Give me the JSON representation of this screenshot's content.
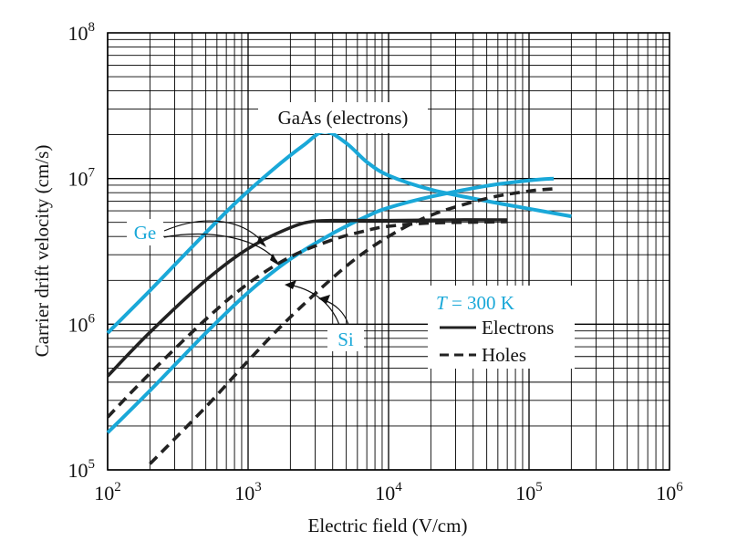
{
  "chart_data": {
    "type": "line",
    "xlabel": "Electric field (V/cm)",
    "ylabel": "Carrier drift velocity (cm/s)",
    "x_scale": "log",
    "y_scale": "log",
    "xlim": [
      100,
      1000000
    ],
    "ylim": [
      100000,
      100000000
    ],
    "grid": true,
    "x_ticks": [
      {
        "value": 100,
        "base": "10",
        "exp": "2"
      },
      {
        "value": 1000,
        "base": "10",
        "exp": "3"
      },
      {
        "value": 10000,
        "base": "10",
        "exp": "4"
      },
      {
        "value": 100000,
        "base": "10",
        "exp": "5"
      },
      {
        "value": 1000000,
        "base": "10",
        "exp": "6"
      }
    ],
    "y_ticks": [
      {
        "value": 100000,
        "base": "10",
        "exp": "5"
      },
      {
        "value": 1000000,
        "base": "10",
        "exp": "6"
      },
      {
        "value": 10000000,
        "base": "10",
        "exp": "7"
      },
      {
        "value": 100000000,
        "base": "10",
        "exp": "8"
      }
    ],
    "annotations": {
      "gaas": "GaAs (electrons)",
      "ge": "Ge",
      "si": "Si"
    },
    "legend": {
      "position": "right-middle",
      "temperature_italic": "T",
      "temperature_rest": " = 300 K",
      "electrons": "Electrons",
      "holes": "Holes"
    },
    "colors": {
      "cyan": "#1aa8d8",
      "black": "#222222"
    },
    "series": [
      {
        "id": "gaas-electrons",
        "color": "cyan",
        "dash": "solid",
        "points": [
          [
            100,
            870000
          ],
          [
            200,
            1700000
          ],
          [
            400,
            3400000
          ],
          [
            800,
            6700000
          ],
          [
            1500,
            11500000
          ],
          [
            2500,
            17000000
          ],
          [
            3500,
            21000000
          ],
          [
            5000,
            17500000
          ],
          [
            7000,
            13000000
          ],
          [
            10000,
            10500000
          ],
          [
            20000,
            8400000
          ],
          [
            50000,
            7000000
          ],
          [
            100000,
            6200000
          ],
          [
            200000,
            5500000
          ]
        ]
      },
      {
        "id": "si-electrons",
        "color": "cyan",
        "dash": "solid",
        "points": [
          [
            100,
            180000
          ],
          [
            200,
            350000
          ],
          [
            500,
            870000
          ],
          [
            1000,
            1650000
          ],
          [
            2000,
            2800000
          ],
          [
            4000,
            4200000
          ],
          [
            7000,
            5500000
          ],
          [
            10000,
            6300000
          ],
          [
            20000,
            7500000
          ],
          [
            50000,
            8900000
          ],
          [
            100000,
            9700000
          ],
          [
            150000,
            10000000
          ]
        ]
      },
      {
        "id": "ge-electrons",
        "color": "black",
        "dash": "solid",
        "points": [
          [
            100,
            440000
          ],
          [
            200,
            880000
          ],
          [
            500,
            2000000
          ],
          [
            1000,
            3300000
          ],
          [
            2000,
            4600000
          ],
          [
            3000,
            5100000
          ],
          [
            5000,
            5150000
          ],
          [
            10000,
            5150000
          ],
          [
            30000,
            5200000
          ],
          [
            70000,
            5200000
          ]
        ]
      },
      {
        "id": "ge-holes",
        "color": "black",
        "dash": "dashed",
        "points": [
          [
            100,
            230000
          ],
          [
            200,
            460000
          ],
          [
            500,
            1080000
          ],
          [
            1000,
            1900000
          ],
          [
            2000,
            2900000
          ],
          [
            4000,
            3800000
          ],
          [
            7000,
            4400000
          ],
          [
            10000,
            4700000
          ],
          [
            20000,
            4950000
          ],
          [
            70000,
            5050000
          ]
        ]
      },
      {
        "id": "si-holes",
        "color": "black",
        "dash": "dashed",
        "points": [
          [
            200,
            110000
          ],
          [
            500,
            270000
          ],
          [
            1000,
            560000
          ],
          [
            2000,
            1120000
          ],
          [
            5000,
            2500000
          ],
          [
            10000,
            4000000
          ],
          [
            20000,
            5600000
          ],
          [
            50000,
            7300000
          ],
          [
            100000,
            8200000
          ],
          [
            150000,
            8500000
          ]
        ]
      }
    ]
  }
}
